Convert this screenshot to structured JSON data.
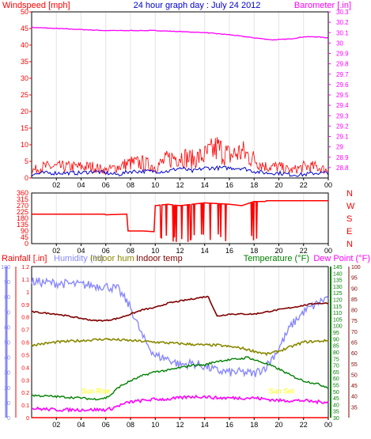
{
  "chart_data": [
    {
      "type": "line",
      "title": "24 hour graph day : July 24 2012",
      "left_axis": {
        "label": "Windspeed [mph]",
        "color": "#ff0000",
        "ylim": [
          0,
          50
        ],
        "ticks": [
          0,
          5,
          10,
          15,
          20,
          25,
          30,
          35,
          40,
          45,
          50
        ]
      },
      "right_axis": {
        "label": "Barometer [.in]",
        "color": "#ff00ff",
        "ylim": [
          28.7,
          30.3
        ],
        "ticks": [
          "28.8",
          "28.9",
          "29",
          "29.1",
          "29.2",
          "29.3",
          "29.4",
          "29.5",
          "29.6",
          "29.7",
          "29.8",
          "29.9",
          "30",
          "30.1",
          "30.2",
          "30.3"
        ]
      },
      "x_ticks": [
        "02",
        "04",
        "06",
        "08",
        "10",
        "12",
        "14",
        "16",
        "18",
        "20",
        "22",
        "00"
      ],
      "series": [
        {
          "axis": "right",
          "color": "#ff00ff",
          "x": [
            0,
            2,
            4,
            6,
            8,
            10,
            12,
            14,
            16,
            18,
            19.5,
            21,
            22,
            23,
            24
          ],
          "values": [
            30.15,
            30.14,
            30.13,
            30.12,
            30.12,
            30.12,
            30.11,
            30.1,
            30.08,
            30.05,
            30.03,
            30.04,
            30.06,
            30.06,
            30.05
          ]
        },
        {
          "axis": "left",
          "color": "#ff0000",
          "x": [
            0,
            1,
            2,
            3,
            4,
            5,
            6,
            7,
            8,
            9,
            10,
            11,
            12,
            13,
            14,
            15,
            16,
            17,
            18,
            19,
            20,
            21,
            22,
            23,
            24
          ],
          "values": [
            2,
            3,
            3,
            3,
            3,
            3,
            2,
            3,
            4,
            4,
            3,
            5,
            6,
            5,
            6,
            8,
            6,
            7,
            5,
            3,
            3,
            2,
            3,
            3,
            2
          ]
        },
        {
          "axis": "left",
          "color": "#0000cc",
          "x": [
            0,
            1,
            2,
            3,
            4,
            5,
            6,
            7,
            8,
            9,
            10,
            11,
            12,
            13,
            14,
            15,
            16,
            17,
            18,
            19,
            20,
            21,
            22,
            23,
            24
          ],
          "values": [
            1,
            1.5,
            1.5,
            1.5,
            1.5,
            2,
            1.5,
            1,
            2,
            2,
            2,
            2,
            3,
            2,
            3,
            3,
            3,
            3,
            2,
            1.5,
            1.5,
            1,
            1,
            1.5,
            1.5
          ]
        }
      ]
    },
    {
      "type": "line",
      "left_axis": {
        "ylim": [
          0,
          360
        ],
        "ticks": [
          0,
          45,
          90,
          135,
          180,
          225,
          270,
          315,
          360
        ],
        "color": "#ff0000"
      },
      "right_axis": {
        "labels": [
          "N",
          "W",
          "S",
          "E",
          "N"
        ],
        "color": "#ff0000"
      },
      "x_ticks": [
        "02",
        "04",
        "06",
        "08",
        "10",
        "12",
        "14",
        "16",
        "18",
        "20",
        "22",
        "00"
      ],
      "series": [
        {
          "color": "#ff0000",
          "x": [
            0,
            5.9,
            6,
            7.7,
            7.8,
            9,
            9.9,
            10,
            11,
            12,
            14,
            16,
            17,
            18,
            18.9,
            19,
            24
          ],
          "values": [
            210,
            210,
            205,
            210,
            90,
            90,
            85,
            270,
            280,
            270,
            290,
            280,
            270,
            300,
            300,
            305,
            305
          ]
        }
      ]
    },
    {
      "type": "line",
      "legend_left": [
        {
          "label": "Rainfall [.in]",
          "color": "#ff0000"
        },
        {
          "label": "Humidity (%)",
          "color": "#8888ff"
        },
        {
          "label": "Indoor hum",
          "color": "#888800"
        },
        {
          "label": "Indoor temp",
          "color": "#800000"
        }
      ],
      "legend_right": [
        {
          "label": "Temperature (°F)",
          "color": "#008000"
        },
        {
          "label": "Dew Point (°F)",
          "color": "#ff00ff"
        }
      ],
      "axes": {
        "humidity": {
          "ylim": [
            0,
            100
          ],
          "ticks": [
            0,
            10,
            20,
            30,
            40,
            50,
            60,
            70,
            80,
            90,
            100
          ],
          "color": "#8888ff"
        },
        "rainfall": {
          "ylim": [
            0,
            1.2
          ],
          "ticks": [
            "0",
            "0.1",
            "0.2",
            "0.3",
            "0.4",
            "0.5",
            "0.6",
            "0.7",
            "0.8",
            "0.9",
            "1",
            "1.1",
            "1.2"
          ],
          "color": "#ff0000"
        },
        "temperature": {
          "ylim": [
            30,
            145
          ],
          "ticks": [
            30,
            35,
            40,
            45,
            50,
            55,
            60,
            65,
            70,
            75,
            80,
            85,
            90,
            95,
            100,
            105,
            110,
            115,
            120,
            125,
            130,
            135,
            140,
            145
          ],
          "color": "#008000"
        },
        "dew_point": {
          "ylim": [
            30,
            100
          ],
          "ticks": [
            35,
            40,
            45,
            50,
            55,
            60,
            65,
            70,
            75,
            80,
            85,
            90,
            95,
            100
          ],
          "color": "#800000"
        }
      },
      "x_ticks": [
        "02",
        "04",
        "06",
        "08",
        "10",
        "12",
        "14",
        "16",
        "18",
        "20",
        "22",
        "00"
      ],
      "annotations": [
        {
          "text": "Sun Rise",
          "x": 5.2,
          "y_pct": 16,
          "color": "#ffff00"
        },
        {
          "text": "Sun Set",
          "x": 20.2,
          "y_pct": 16,
          "color": "#ffff00"
        }
      ],
      "series": [
        {
          "name": "Humidity (%)",
          "color": "#8888ff",
          "x": [
            0,
            2,
            4,
            6,
            7,
            8,
            9,
            10,
            11,
            12,
            13,
            14,
            15,
            16,
            17,
            18,
            19,
            20,
            21,
            22,
            23,
            24
          ],
          "values": [
            90,
            89,
            88,
            87,
            85,
            73,
            53,
            41,
            39,
            35,
            36,
            34,
            31,
            30,
            30,
            29,
            34,
            46,
            61,
            70,
            75,
            80
          ]
        },
        {
          "name": "Indoor temp",
          "color": "#800000",
          "x": [
            0,
            2,
            4,
            5,
            6,
            7,
            8,
            9,
            10,
            11,
            12,
            13,
            14,
            14.3,
            15,
            16,
            17,
            18,
            19,
            20,
            21,
            22,
            23,
            24
          ],
          "values": [
            79,
            78,
            76,
            75,
            75,
            76,
            78,
            80,
            81,
            83,
            84,
            85,
            86,
            86,
            77,
            78,
            78,
            78,
            79,
            80,
            81,
            82,
            83,
            83
          ]
        },
        {
          "name": "Indoor hum",
          "color": "#888800",
          "x": [
            0,
            2,
            4,
            6,
            8,
            10,
            12,
            14,
            15,
            16,
            17,
            18,
            19,
            20,
            21,
            22,
            24
          ],
          "values": [
            48,
            50,
            51,
            52,
            51,
            50,
            49,
            48,
            48,
            47,
            46,
            44,
            42,
            44,
            47,
            50,
            51
          ]
        },
        {
          "name": "Temperature (°F)",
          "color": "#008000",
          "x": [
            0,
            2,
            4,
            5,
            6,
            6.5,
            7,
            8,
            9,
            10,
            11,
            12,
            13,
            14,
            15,
            16,
            17,
            17.5,
            18,
            19,
            20,
            21,
            22,
            23,
            24
          ],
          "values": [
            47,
            46,
            45,
            44,
            45,
            48,
            53,
            58,
            62,
            65,
            66,
            68,
            70,
            70,
            73,
            74,
            75,
            76,
            74,
            71,
            67,
            62,
            58,
            56,
            53
          ]
        },
        {
          "name": "Dew Point (°F)",
          "color": "#ff00ff",
          "x": [
            0,
            2,
            4,
            5,
            6,
            6.5,
            7,
            8,
            9,
            10,
            11,
            12,
            13,
            14,
            15,
            16,
            17,
            18,
            19,
            20,
            21,
            22,
            23,
            24
          ],
          "values": [
            37,
            36,
            36,
            36,
            36,
            37,
            39,
            42,
            43,
            44,
            44,
            45,
            46,
            46,
            45,
            45,
            45,
            45,
            44,
            43,
            43,
            43,
            42,
            42
          ]
        },
        {
          "name": "Rainfall [.in]",
          "color": "#ff0000",
          "x": [
            0,
            24
          ],
          "values": [
            0,
            0
          ]
        }
      ]
    }
  ]
}
